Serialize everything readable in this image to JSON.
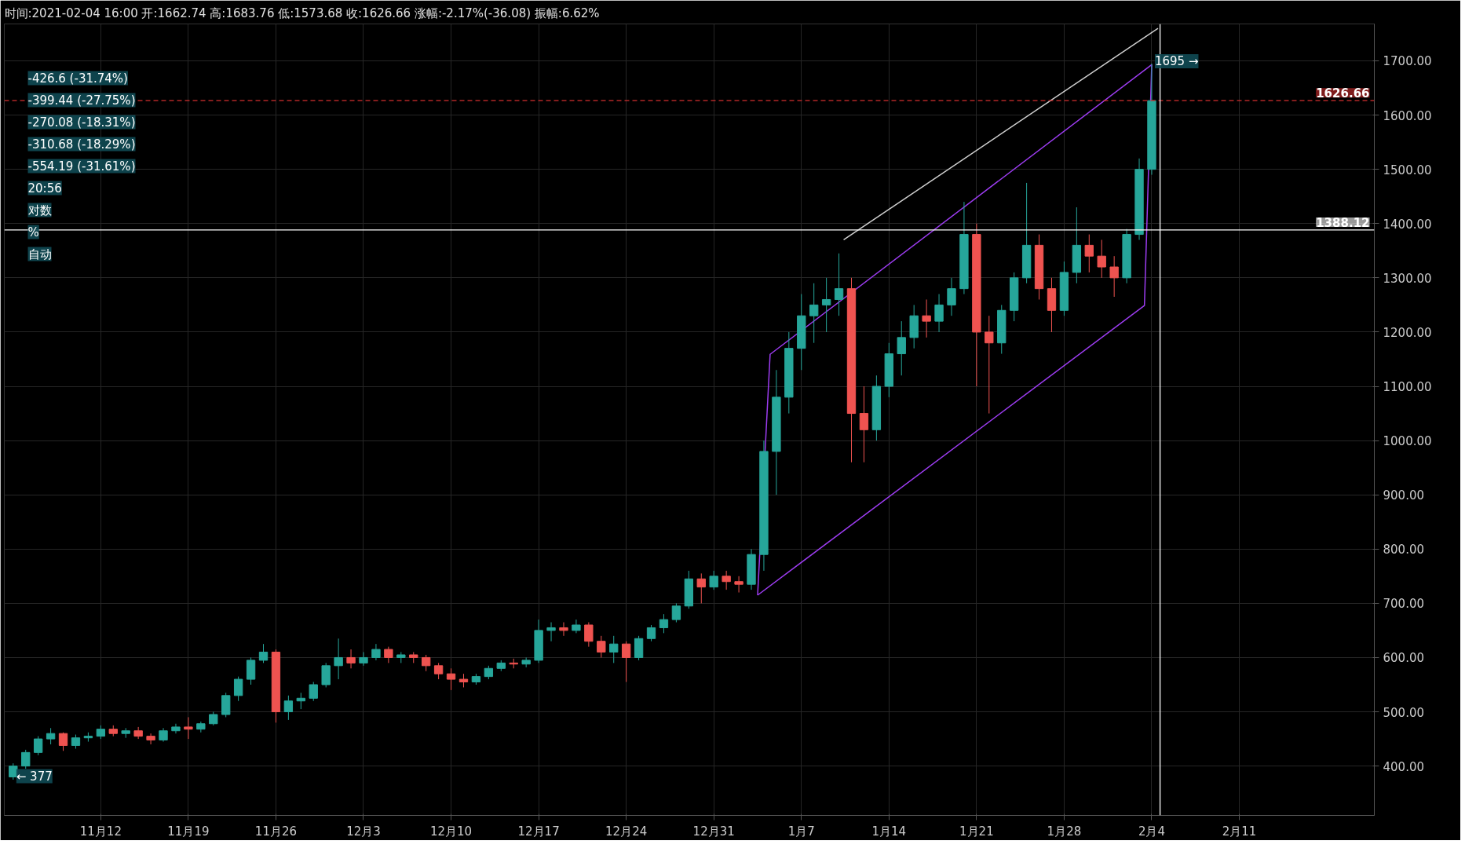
{
  "chart_data": {
    "type": "candlestick",
    "title": "时间:2021-02-04 16:00  开:1662.74  高:1683.76  低:1573.68  收:1626.66  涨幅:-2.17%(-36.08)  振幅:6.62%",
    "x": [
      "2020-11-05",
      "2020-11-06",
      "2020-11-07",
      "2020-11-08",
      "2020-11-09",
      "2020-11-10",
      "2020-11-11",
      "2020-11-12",
      "2020-11-13",
      "2020-11-14",
      "2020-11-15",
      "2020-11-16",
      "2020-11-17",
      "2020-11-18",
      "2020-11-19",
      "2020-11-20",
      "2020-11-21",
      "2020-11-22",
      "2020-11-23",
      "2020-11-24",
      "2020-11-25",
      "2020-11-26",
      "2020-11-27",
      "2020-11-28",
      "2020-11-29",
      "2020-11-30",
      "2020-12-01",
      "2020-12-02",
      "2020-12-03",
      "2020-12-04",
      "2020-12-05",
      "2020-12-06",
      "2020-12-07",
      "2020-12-08",
      "2020-12-09",
      "2020-12-10",
      "2020-12-11",
      "2020-12-12",
      "2020-12-13",
      "2020-12-14",
      "2020-12-15",
      "2020-12-16",
      "2020-12-17",
      "2020-12-18",
      "2020-12-19",
      "2020-12-20",
      "2020-12-21",
      "2020-12-22",
      "2020-12-23",
      "2020-12-24",
      "2020-12-25",
      "2020-12-26",
      "2020-12-27",
      "2020-12-28",
      "2020-12-29",
      "2020-12-30",
      "2020-12-31",
      "2021-01-01",
      "2021-01-02",
      "2021-01-03",
      "2021-01-04",
      "2021-01-05",
      "2021-01-06",
      "2021-01-07",
      "2021-01-08",
      "2021-01-09",
      "2021-01-10",
      "2021-01-11",
      "2021-01-12",
      "2021-01-13",
      "2021-01-14",
      "2021-01-15",
      "2021-01-16",
      "2021-01-17",
      "2021-01-18",
      "2021-01-19",
      "2021-01-20",
      "2021-01-21",
      "2021-01-22",
      "2021-01-23",
      "2021-01-24",
      "2021-01-25",
      "2021-01-26",
      "2021-01-27",
      "2021-01-28",
      "2021-01-29",
      "2021-01-30",
      "2021-01-31",
      "2021-02-01",
      "2021-02-02",
      "2021-02-03",
      "2021-02-04"
    ],
    "ohlc": [
      [
        380,
        405,
        375,
        400
      ],
      [
        400,
        430,
        395,
        425
      ],
      [
        425,
        455,
        420,
        450
      ],
      [
        450,
        470,
        440,
        460
      ],
      [
        460,
        462,
        428,
        438
      ],
      [
        438,
        458,
        432,
        452
      ],
      [
        452,
        462,
        445,
        455
      ],
      [
        455,
        475,
        450,
        468
      ],
      [
        468,
        475,
        455,
        460
      ],
      [
        460,
        470,
        452,
        465
      ],
      [
        465,
        472,
        450,
        455
      ],
      [
        455,
        460,
        440,
        448
      ],
      [
        448,
        470,
        445,
        465
      ],
      [
        465,
        478,
        460,
        472
      ],
      [
        472,
        490,
        450,
        468
      ],
      [
        468,
        482,
        462,
        478
      ],
      [
        478,
        500,
        475,
        495
      ],
      [
        495,
        535,
        490,
        530
      ],
      [
        530,
        565,
        520,
        560
      ],
      [
        560,
        600,
        550,
        595
      ],
      [
        595,
        625,
        590,
        610
      ],
      [
        610,
        615,
        480,
        500
      ],
      [
        500,
        530,
        485,
        520
      ],
      [
        520,
        535,
        505,
        525
      ],
      [
        525,
        555,
        520,
        550
      ],
      [
        550,
        590,
        545,
        585
      ],
      [
        585,
        635,
        560,
        600
      ],
      [
        600,
        615,
        580,
        590
      ],
      [
        590,
        610,
        585,
        600
      ],
      [
        600,
        625,
        595,
        615
      ],
      [
        615,
        620,
        590,
        600
      ],
      [
        600,
        610,
        590,
        605
      ],
      [
        605,
        610,
        590,
        600
      ],
      [
        600,
        605,
        575,
        585
      ],
      [
        585,
        590,
        560,
        570
      ],
      [
        570,
        580,
        540,
        560
      ],
      [
        560,
        570,
        545,
        555
      ],
      [
        555,
        570,
        550,
        565
      ],
      [
        565,
        585,
        560,
        580
      ],
      [
        580,
        595,
        575,
        590
      ],
      [
        590,
        598,
        580,
        588
      ],
      [
        588,
        600,
        582,
        595
      ],
      [
        595,
        670,
        590,
        650
      ],
      [
        650,
        665,
        630,
        655
      ],
      [
        655,
        665,
        640,
        650
      ],
      [
        650,
        670,
        645,
        660
      ],
      [
        660,
        665,
        620,
        630
      ],
      [
        630,
        640,
        600,
        610
      ],
      [
        610,
        640,
        590,
        625
      ],
      [
        625,
        630,
        555,
        600
      ],
      [
        600,
        640,
        595,
        635
      ],
      [
        635,
        660,
        630,
        655
      ],
      [
        655,
        680,
        645,
        670
      ],
      [
        670,
        700,
        665,
        695
      ],
      [
        695,
        760,
        690,
        745
      ],
      [
        745,
        755,
        700,
        730
      ],
      [
        730,
        760,
        725,
        750
      ],
      [
        750,
        760,
        725,
        740
      ],
      [
        740,
        750,
        720,
        735
      ],
      [
        735,
        800,
        725,
        790
      ],
      [
        790,
        1000,
        760,
        980
      ],
      [
        980,
        1130,
        900,
        1080
      ],
      [
        1080,
        1200,
        1050,
        1170
      ],
      [
        1170,
        1270,
        1130,
        1230
      ],
      [
        1230,
        1290,
        1180,
        1250
      ],
      [
        1250,
        1300,
        1200,
        1260
      ],
      [
        1260,
        1345,
        1230,
        1280
      ],
      [
        1280,
        1300,
        960,
        1050
      ],
      [
        1050,
        1100,
        960,
        1020
      ],
      [
        1020,
        1120,
        1000,
        1100
      ],
      [
        1100,
        1180,
        1080,
        1160
      ],
      [
        1160,
        1220,
        1120,
        1190
      ],
      [
        1190,
        1250,
        1170,
        1230
      ],
      [
        1230,
        1260,
        1190,
        1220
      ],
      [
        1220,
        1270,
        1200,
        1250
      ],
      [
        1250,
        1300,
        1230,
        1280
      ],
      [
        1280,
        1440,
        1270,
        1380
      ],
      [
        1380,
        1400,
        1100,
        1200
      ],
      [
        1200,
        1230,
        1050,
        1180
      ],
      [
        1180,
        1250,
        1160,
        1240
      ],
      [
        1240,
        1310,
        1220,
        1300
      ],
      [
        1300,
        1475,
        1290,
        1360
      ],
      [
        1360,
        1380,
        1260,
        1280
      ],
      [
        1280,
        1300,
        1200,
        1240
      ],
      [
        1240,
        1330,
        1230,
        1310
      ],
      [
        1310,
        1430,
        1290,
        1360
      ],
      [
        1360,
        1380,
        1310,
        1340
      ],
      [
        1340,
        1370,
        1300,
        1320
      ],
      [
        1320,
        1340,
        1265,
        1300
      ],
      [
        1300,
        1390,
        1290,
        1380
      ],
      [
        1380,
        1520,
        1370,
        1500
      ],
      [
        1500,
        1695,
        1490,
        1626.66
      ]
    ],
    "series": [
      {
        "type": "line",
        "color": "#9c3cf0",
        "x": [
          "2021-01-03T12:00",
          "2021-01-04T12:00",
          "2021-02-04T00:00"
        ],
        "values": [
          715,
          1159,
          1693
        ]
      },
      {
        "type": "line",
        "color": "#9c3cf0",
        "x": [
          "2021-01-03T12:00",
          "2021-02-03T10:00",
          "2021-02-04T00:00"
        ],
        "values": [
          715,
          1249,
          1693
        ]
      },
      {
        "type": "line",
        "color": "#d0d0d0",
        "x": [
          "2021-01-10T09:00",
          "2021-02-04T12:00"
        ],
        "values": [
          1370,
          1760
        ]
      }
    ],
    "xlim": [
      "2020-11-04T07:00",
      "2021-02-21T19:00"
    ],
    "xticks": [
      {
        "value": "2020-11-12",
        "label": "11月12"
      },
      {
        "value": "2020-11-19",
        "label": "11月19"
      },
      {
        "value": "2020-11-26",
        "label": "11月26"
      },
      {
        "value": "2020-12-03",
        "label": "12月3"
      },
      {
        "value": "2020-12-10",
        "label": "12月10"
      },
      {
        "value": "2020-12-17",
        "label": "12月17"
      },
      {
        "value": "2020-12-24",
        "label": "12月24"
      },
      {
        "value": "2020-12-31",
        "label": "12月31"
      },
      {
        "value": "2021-01-07",
        "label": "1月7"
      },
      {
        "value": "2021-01-14",
        "label": "1月14"
      },
      {
        "value": "2021-01-21",
        "label": "1月21"
      },
      {
        "value": "2021-01-28",
        "label": "1月28"
      },
      {
        "value": "2021-02-04",
        "label": "2月4"
      },
      {
        "value": "2021-02-11",
        "label": "2月11"
      }
    ],
    "ylim": [
      309,
      1768
    ],
    "yticks": [
      {
        "value": 400,
        "label": "400.00"
      },
      {
        "value": 500,
        "label": "500.00"
      },
      {
        "value": 600,
        "label": "600.00"
      },
      {
        "value": 700,
        "label": "700.00"
      },
      {
        "value": 800,
        "label": "800.00"
      },
      {
        "value": 900,
        "label": "900.00"
      },
      {
        "value": 1000,
        "label": "1000.00"
      },
      {
        "value": 1100,
        "label": "1100.00"
      },
      {
        "value": 1200,
        "label": "1200.00"
      },
      {
        "value": 1300,
        "label": "1300.00"
      },
      {
        "value": 1400,
        "label": "1400.00"
      },
      {
        "value": 1500,
        "label": "1500.00"
      },
      {
        "value": 1600,
        "label": "1600.00"
      },
      {
        "value": 1700,
        "label": "1700.00"
      }
    ],
    "grid": true,
    "ref_lines": [
      {
        "axis": "y",
        "value": 1388.12,
        "label": "1388.12",
        "color": "#ffffff"
      },
      {
        "axis": "y",
        "value": 1626.66,
        "label": "1626.66",
        "color": "#d32f2f",
        "line_style": "dashed"
      },
      {
        "axis": "x",
        "value": "2021-02-04T16:00",
        "label": null,
        "color": "#ffffff"
      }
    ],
    "annotations": [
      {
        "text": "← 377",
        "x": "2020-11-05",
        "y": 377
      },
      {
        "text": "1695 →",
        "x": "2021-02-04",
        "y": 1695
      },
      "-426.6 (-31.74%)",
      "-399.44 (-27.75%)",
      "-270.08 (-18.31%)",
      "-310.68 (-18.29%)",
      "-554.19 (-31.61%)",
      "20:56",
      "对数",
      "%",
      "自动"
    ]
  }
}
